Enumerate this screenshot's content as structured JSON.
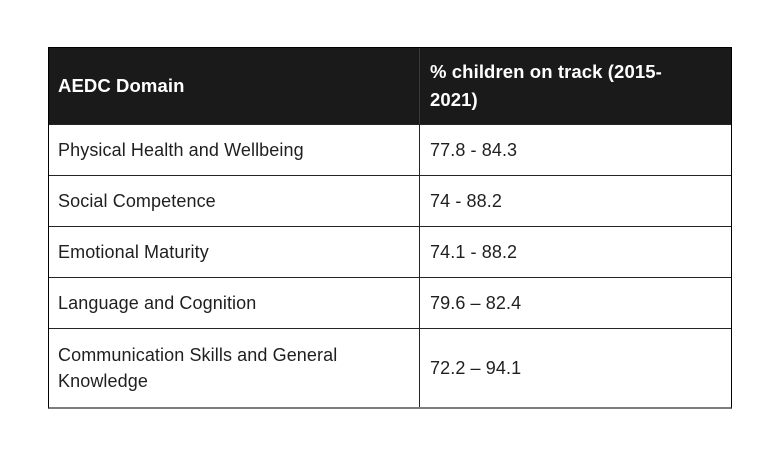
{
  "page": {
    "background": "#ffffff"
  },
  "table": {
    "colors": {
      "header_bg": "#1a1a1a",
      "header_text": "#ffffff",
      "body_text": "#1f1f1f",
      "border": "#242424",
      "bottom_edge": "#7d7d7d"
    },
    "header": {
      "domain_label": "AEDC Domain",
      "on_track_label": "% children on track (2015-2021)"
    },
    "rows": [
      {
        "domain": "Physical Health and Wellbeing",
        "range": "77.8 - 84.3"
      },
      {
        "domain": "Social Competence",
        "range": "74 - 88.2"
      },
      {
        "domain": "Emotional Maturity",
        "range": "74.1 - 88.2"
      },
      {
        "domain": "Language and Cognition",
        "range": "79.6 – 82.4"
      },
      {
        "domain": "Communication Skills and General Knowledge",
        "range": "72.2 – 94.1"
      }
    ]
  }
}
